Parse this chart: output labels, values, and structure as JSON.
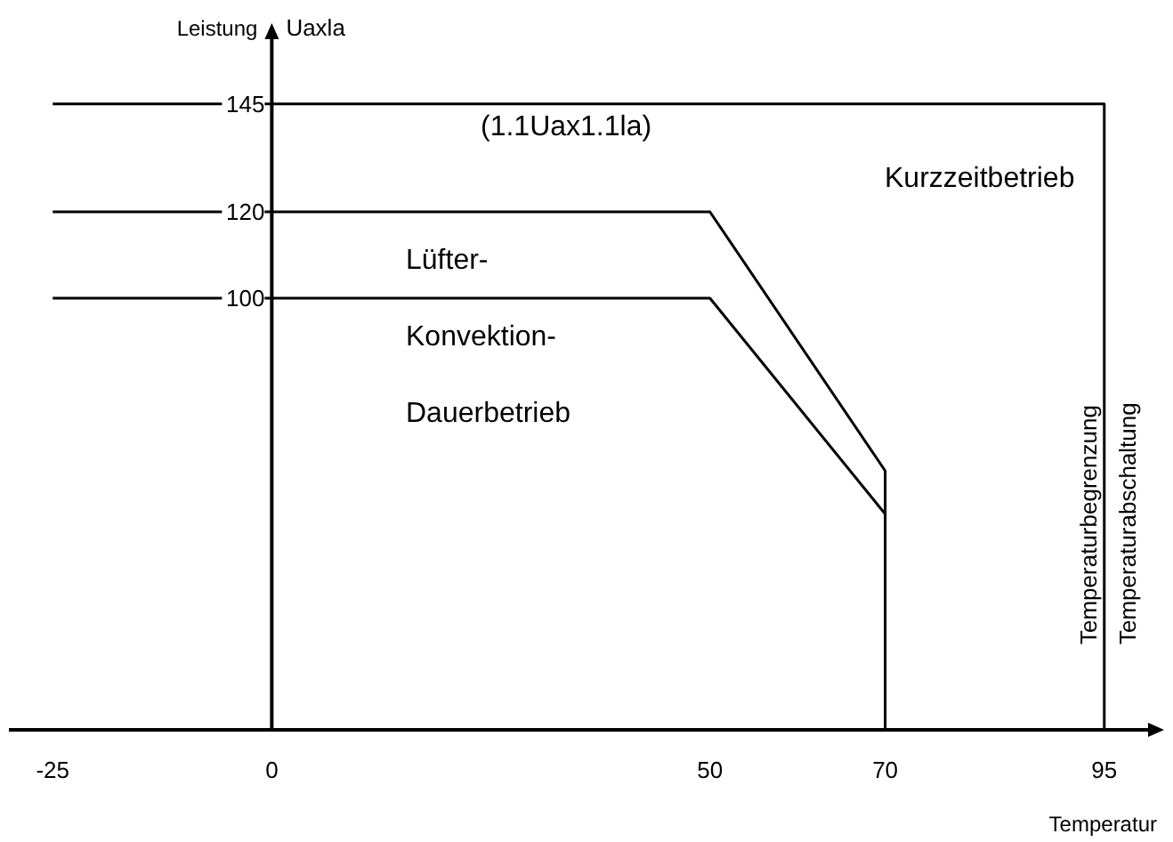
{
  "chart_data": {
    "type": "line",
    "xlabel": "Temperatur",
    "ylabel": "Leistung",
    "xlim": [
      -30,
      100
    ],
    "ylim": [
      0,
      160
    ],
    "xticks": [
      -25,
      0,
      50,
      70,
      95
    ],
    "yticks": [
      100,
      120,
      145
    ],
    "series": [
      {
        "color": "#000000",
        "x": [
          -25,
          95,
          95
        ],
        "values": [
          145,
          145,
          0
        ]
      },
      {
        "color": "#000000",
        "x": [
          -25,
          50,
          70,
          70
        ],
        "values": [
          120,
          120,
          60,
          0
        ]
      },
      {
        "color": "#000000",
        "x": [
          -25,
          50,
          70
        ],
        "values": [
          100,
          100,
          50
        ]
      }
    ],
    "annotations": [
      "Uaxla",
      "(1.1Uax1.1la)",
      "Kurzzeitbetrieb",
      "Lüfter-",
      "Konvektion-",
      "Dauerbetrieb",
      "Temperaturbegrenzung",
      "Temperaturabschaltung"
    ],
    "grid": false,
    "marker": "none",
    "line_style": "solid"
  }
}
